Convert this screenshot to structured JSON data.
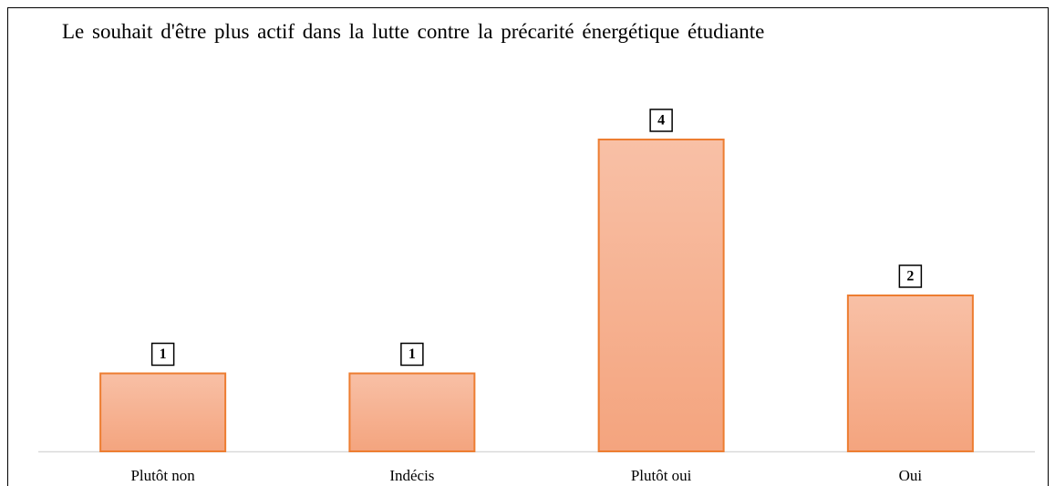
{
  "chart_data": {
    "type": "bar",
    "title": "Le souhait d'être plus actif dans la lutte contre la précarité énergétique étudiante",
    "categories": [
      "Plutôt non",
      "Indécis",
      "Plutôt oui",
      "Oui"
    ],
    "values": [
      1,
      1,
      4,
      2
    ],
    "color": "#ed7d31"
  }
}
